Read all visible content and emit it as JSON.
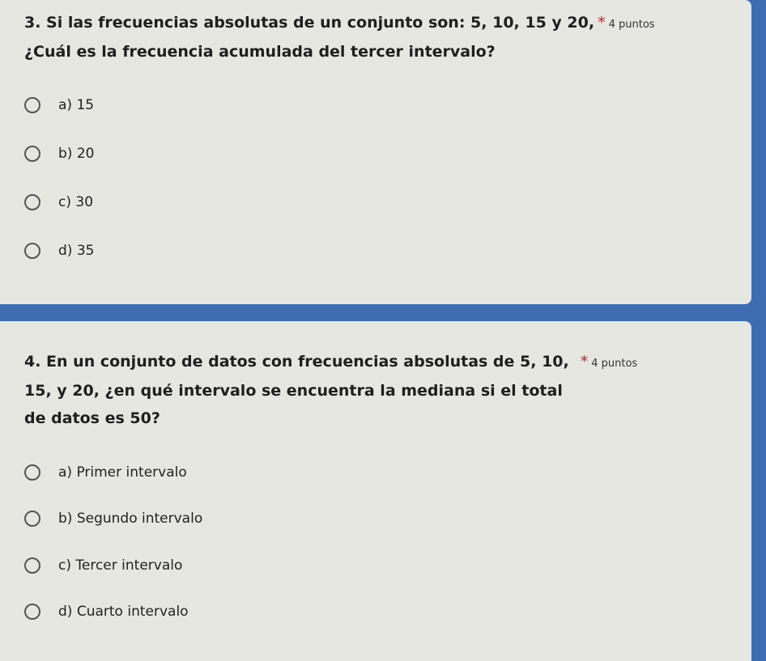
{
  "questions": [
    {
      "line1": "3. Si las frecuencias absolutas de un conjunto son: 5, 10, 15 y 20,",
      "line2": "¿Cuál es la frecuencia acumulada del tercer intervalo?",
      "required": "*",
      "points": "4 puntos",
      "options": [
        "a) 15",
        "b) 20",
        "c) 30",
        "d) 35"
      ]
    },
    {
      "line1": "4. En un conjunto de datos con frecuencias absolutas de 5, 10,",
      "line2": "15, y 20, ¿en qué intervalo se encuentra la mediana si el total",
      "line3": "de datos es 50?",
      "required": "*",
      "points": "4 puntos",
      "options": [
        "a) Primer intervalo",
        "b) Segundo intervalo",
        "c) Tercer intervalo",
        "d) Cuarto intervalo"
      ]
    }
  ],
  "colors": {
    "accent": "#3d6cb3",
    "card": "#e7e7e2",
    "required": "#c5221f"
  }
}
